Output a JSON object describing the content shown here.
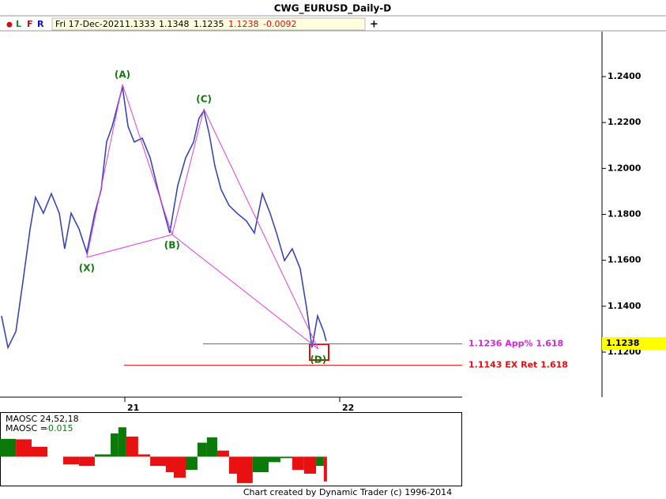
{
  "window_title": "CWG_EURUSD_Daily-D",
  "toolbar": {
    "flags": [
      "L",
      "F",
      "R"
    ],
    "date": "Fri 17-Dec-2021",
    "open": 1.1333,
    "high": 1.1348,
    "low": 1.1235,
    "close": 1.1238,
    "change": -0.0092
  },
  "chart_data": [
    {
      "type": "line",
      "color": "#3a46b8",
      "x": [
        20.426,
        20.456,
        20.493,
        20.529,
        20.559,
        20.584,
        20.621,
        20.658,
        20.695,
        20.72,
        20.75,
        20.787,
        20.823,
        20.86,
        20.89,
        20.915,
        20.941,
        20.97,
        20.989,
        21.015,
        21.044,
        21.081,
        21.118,
        21.154,
        21.184,
        21.209,
        21.246,
        21.283,
        21.32,
        21.345,
        21.368,
        21.393,
        21.419,
        21.448,
        21.485,
        21.522,
        21.566,
        21.603,
        21.64,
        21.676,
        21.706,
        21.743,
        21.779,
        21.816,
        21.846,
        21.871,
        21.897,
        21.926,
        21.937
      ],
      "values": [
        1.1358,
        1.122,
        1.129,
        1.153,
        1.1736,
        1.1874,
        1.1805,
        1.189,
        1.1805,
        1.165,
        1.1805,
        1.1736,
        1.1633,
        1.1805,
        1.1908,
        1.2115,
        1.2183,
        1.2287,
        1.2355,
        1.2183,
        1.2115,
        1.2132,
        1.2046,
        1.1908,
        1.1805,
        1.1719,
        1.1925,
        1.2046,
        1.2115,
        1.2218,
        1.2252,
        1.2149,
        1.2011,
        1.1908,
        1.1839,
        1.1805,
        1.1771,
        1.1719,
        1.1891,
        1.1805,
        1.1719,
        1.1599,
        1.165,
        1.1564,
        1.1392,
        1.122,
        1.1358,
        1.1289,
        1.1248
      ],
      "xlim": [
        20.419,
        22.57
      ],
      "ylim": [
        1.1004,
        1.2596
      ],
      "xticks": [
        21,
        22
      ],
      "yticks": [
        {
          "value": 1.12,
          "label": "1.1200"
        },
        {
          "value": 1.14,
          "label": "1.1400"
        },
        {
          "value": 1.16,
          "label": "1.1600"
        },
        {
          "value": 1.18,
          "label": "1.1800"
        },
        {
          "value": 1.2,
          "label": "1.2000"
        },
        {
          "value": 1.22,
          "label": "1.2200"
        },
        {
          "value": 1.24,
          "label": "1.2400"
        }
      ],
      "last_price": 1.1238,
      "pattern": {
        "color": "#e040e0",
        "points": [
          {
            "label": "(X)",
            "x": 20.823,
            "y": 1.1613
          },
          {
            "label": "(A)",
            "x": 20.989,
            "y": 1.2366
          },
          {
            "label": "(B)",
            "x": 21.22,
            "y": 1.1712
          },
          {
            "label": "(C)",
            "x": 21.368,
            "y": 1.2259
          },
          {
            "label": "(D)",
            "x": 21.9,
            "y": 1.1214
          }
        ]
      },
      "levels": [
        {
          "value": 1.1236,
          "label": "1.1236 App% 1.618",
          "color": "#e020e0"
        },
        {
          "value": 1.1143,
          "label": "1.1143 EX Ret 1.618",
          "color": "#e01010"
        }
      ]
    },
    {
      "type": "bar",
      "title": "MAOSC 24,52,18",
      "readout_label": "MAOSC =",
      "readout_value": -0.015,
      "up_color": "#0a7a0a",
      "down_color": "#e81010",
      "x": [
        20.419,
        20.493,
        20.566,
        20.64,
        20.713,
        20.787,
        20.86,
        20.934,
        20.97,
        21.007,
        21.062,
        21.118,
        21.191,
        21.228,
        21.283,
        21.338,
        21.382,
        21.43,
        21.485,
        21.522,
        21.595,
        21.669,
        21.724,
        21.779,
        21.834,
        21.89,
        21.926
      ],
      "values": [
        0.0108,
        0.0105,
        0.006,
        0.0,
        -0.0047,
        -0.0056,
        0.0014,
        0.0141,
        0.0178,
        0.0122,
        0.0014,
        -0.0056,
        -0.0094,
        -0.0127,
        -0.008,
        0.0085,
        0.0117,
        0.0037,
        -0.0103,
        -0.016,
        -0.0094,
        -0.0033,
        -0.0009,
        -0.008,
        -0.0103,
        -0.0056,
        -0.015
      ],
      "xlim": [
        20.419,
        22.57
      ],
      "ylim": [
        -0.0175,
        0.0265
      ]
    }
  ],
  "footer": "Chart created by Dynamic Trader  (c) 1996-2014"
}
